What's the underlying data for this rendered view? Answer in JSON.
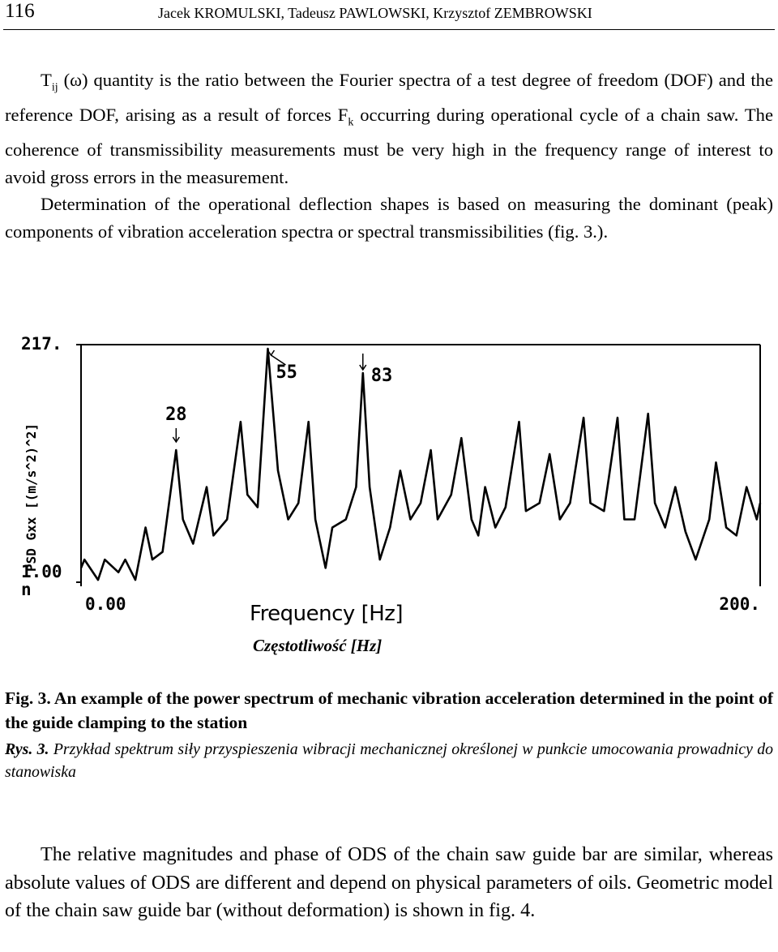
{
  "header": {
    "page_number": "116",
    "authors": "Jacek KROMULSKI, Tadeusz PAWLOWSKI, Krzysztof ZEMBROWSKI"
  },
  "paragraph_1": [
    "T",
    "ij",
    " (ω) quantity is the ratio between the Fourier spectra of a test degree of freedom (DOF) and the reference DOF, arising as a result of forces F",
    "k",
    " occurring during operational cycle of a chain saw. The coherence of transmissibility measurements must be very high in the frequency range of interest to avoid gross errors in the measurement."
  ],
  "paragraph_2": "Determination of the operational deflection shapes is based on measuring the dominant (peak) components of vibration acceleration spectra or spectral trans­missibilities (fig. 3.).",
  "chart_data": {
    "type": "line",
    "log_y": true,
    "color": "#000000",
    "ylabel": "PSD Gxx [(m/s^2)^2]",
    "xlabel": "Frequency [Hz]",
    "xlabel_pl": "Częstotliwość [Hz]",
    "xlim": [
      0,
      200
    ],
    "xticks": [
      {
        "value": 0,
        "label": "0.00"
      },
      {
        "value": 200,
        "label": "200."
      }
    ],
    "ylim": [
      1e-09,
      217
    ],
    "yticks": [
      {
        "value": 217,
        "label": "217."
      },
      {
        "value": 1e-09,
        "label": "1.00\nn"
      }
    ],
    "annotations": [
      28,
      55,
      83
    ],
    "x": [
      0,
      1,
      5,
      7,
      11,
      13,
      16,
      19,
      21,
      24,
      28,
      30,
      33,
      37,
      39,
      43,
      47,
      49,
      52,
      55,
      58,
      61,
      64,
      67,
      69,
      72,
      74,
      78,
      81,
      83,
      85,
      88,
      91,
      94,
      97,
      100,
      103,
      105,
      109,
      112,
      115,
      117,
      119,
      122,
      125,
      129,
      131,
      135,
      138,
      141,
      144,
      148,
      150,
      154,
      158,
      160,
      163,
      167,
      169,
      172,
      175,
      178,
      181,
      185,
      187,
      190,
      193,
      196,
      199,
      200
    ],
    "values": [
      4.8e-09,
      1.2e-08,
      1.3e-09,
      1.2e-08,
      3e-09,
      1.2e-08,
      1.3e-09,
      4.1e-07,
      1.2e-08,
      2.8e-08,
      0.002,
      1e-06,
      6.9e-08,
      3.5e-05,
      1.7e-07,
      1e-06,
      0.045,
      1.5e-05,
      3.8e-06,
      138,
      0.00021,
      1e-06,
      6e-06,
      0.045,
      1e-06,
      4.8e-09,
      4.1e-07,
      1e-06,
      3.5e-05,
      9.6,
      3.5e-05,
      1.2e-08,
      4.1e-07,
      0.00021,
      1e-06,
      6e-06,
      0.002,
      1e-06,
      1.5e-05,
      0.0076,
      1e-06,
      1.7e-07,
      3.5e-05,
      4.1e-07,
      3.8e-06,
      0.045,
      2.5e-06,
      6e-06,
      0.0013,
      1e-06,
      6e-06,
      0.071,
      6e-06,
      2.5e-06,
      0.071,
      1e-06,
      1e-06,
      0.11,
      6e-06,
      4.1e-07,
      3.5e-05,
      2.6e-07,
      1.2e-08,
      1e-06,
      0.00052,
      4.1e-07,
      1.7e-07,
      3.5e-05,
      1e-06,
      6e-06
    ]
  },
  "caption_en": "Fig. 3. An example of the power spectrum of mechanic vibration acceleration determined in the point of the guide clamping to the station",
  "caption_pl": {
    "label": "Rys. 3.",
    "text": " Przykład spektrum siły przyspieszenia wibracji mechanicznej określonej w punkcie umocowania prowadnicy do stanowiska"
  },
  "paragraph_3": "The relative magnitudes and phase of ODS of the chain saw guide bar are similar, whereas absolute values of ODS are different and depend on physical parameters of oils. Geometric model of the chain saw guide bar (without defor­mation) is shown in fig. 4."
}
